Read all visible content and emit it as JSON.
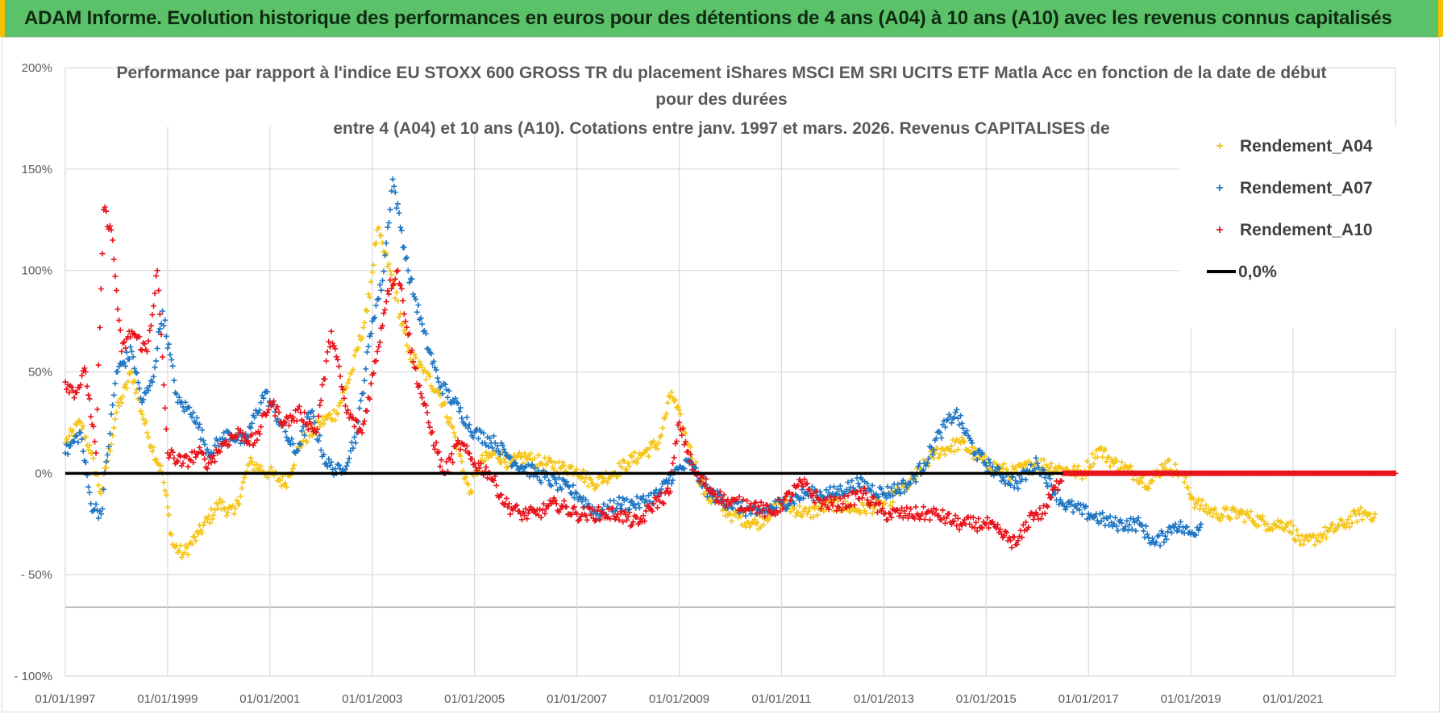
{
  "banner": {
    "text": "ADAM Informe. Evolution historique des performances en euros pour des détentions de 4 ans (A04) à 10 ans (A10) avec les revenus connus capitalisés"
  },
  "colors": {
    "banner_bg": "#5cc26a",
    "banner_border": "#f2c200",
    "A04": "#f5c518",
    "A07": "#1f77c4",
    "A10": "#e8141c",
    "zero_line": "#000000",
    "grid": "#d9d9d9"
  },
  "chart_data": {
    "type": "scatter",
    "title_lines": [
      "Performance par rapport à l'indice EU STOXX 600 GROSS TR  du placement iShares MSCI EM SRI UCITS ETF Matla Acc en fonction de la date de début",
      "pour des durées",
      "entre 4 (A04) et 10 ans (A10). Cotations entre janv. 1997 et mars. 2026. Revenus CAPITALISES de"
    ],
    "y_ticks": [
      "200%",
      "150%",
      "100%",
      "50%",
      "0%",
      "- 50%",
      "- 100%"
    ],
    "y_tick_values": [
      200,
      150,
      100,
      50,
      0,
      -50,
      -100
    ],
    "ylim": [
      -100,
      200
    ],
    "x_ticks": [
      "01/01/1997",
      "01/01/1999",
      "01/01/2001",
      "01/01/2003",
      "01/01/2005",
      "01/01/2007",
      "01/01/2009",
      "01/01/2011",
      "01/01/2013",
      "01/01/2015",
      "01/01/2017",
      "01/01/2019",
      "01/01/2021"
    ],
    "x_tick_years": [
      1997,
      1999,
      2001,
      2003,
      2005,
      2007,
      2009,
      2011,
      2013,
      2015,
      2017,
      2019,
      2021
    ],
    "xlim": [
      1997.0,
      2023.0
    ],
    "legend_position": "top-right",
    "grid": true,
    "series": [
      {
        "name": "Rendement_A04",
        "x": [
          1997.0,
          1997.3,
          1997.5,
          1997.7,
          1998.0,
          1998.3,
          1998.6,
          1998.9,
          1999.1,
          1999.3,
          1999.6,
          2000.0,
          2000.3,
          2000.6,
          2001.0,
          2001.3,
          2001.6,
          2002.0,
          2002.3,
          2002.6,
          2002.9,
          2003.1,
          2003.4,
          2003.7,
          2004.0,
          2004.3,
          2004.6,
          2004.9,
          2005.1,
          2005.4,
          2005.7,
          2006.0,
          2006.3,
          2006.7,
          2007.0,
          2007.3,
          2007.7,
          2008.0,
          2008.3,
          2008.6,
          2008.85,
          2009.1,
          2009.5,
          2010.0,
          2010.5,
          2011.0,
          2011.5,
          2012.0,
          2012.5,
          2013.0,
          2013.5,
          2014.0,
          2014.5,
          2015.0,
          2015.5,
          2016.0,
          2016.5,
          2016.9,
          2017.2,
          2017.5,
          2017.9,
          2018.2,
          2018.5,
          2018.8,
          2019.1,
          2019.5,
          2020.0,
          2020.5,
          2020.9,
          2021.2,
          2021.6,
          2022.0,
          2022.3,
          2022.6
        ],
        "y": [
          15,
          25,
          10,
          -10,
          30,
          50,
          20,
          0,
          -35,
          -40,
          -30,
          -15,
          -20,
          5,
          0,
          -5,
          15,
          25,
          30,
          50,
          80,
          120,
          95,
          60,
          50,
          40,
          20,
          -10,
          5,
          10,
          5,
          8,
          5,
          3,
          2,
          -5,
          0,
          5,
          10,
          15,
          40,
          20,
          -10,
          -20,
          -25,
          -15,
          -20,
          -15,
          -18,
          -15,
          -5,
          10,
          15,
          5,
          0,
          5,
          2,
          0,
          12,
          5,
          0,
          -5,
          5,
          0,
          -15,
          -20,
          -20,
          -25,
          -25,
          -35,
          -30,
          -25,
          -20,
          -20
        ]
      },
      {
        "name": "Rendement_A07",
        "x": [
          1997.0,
          1997.3,
          1997.5,
          1997.7,
          1998.0,
          1998.3,
          1998.5,
          1998.7,
          1998.9,
          1999.2,
          1999.5,
          1999.8,
          2000.2,
          2000.5,
          2000.9,
          2001.2,
          2001.5,
          2001.8,
          2002.1,
          2002.4,
          2002.7,
          2003.0,
          2003.2,
          2003.4,
          2003.7,
          2004.0,
          2004.3,
          2004.6,
          2005.0,
          2005.4,
          2005.8,
          2006.2,
          2006.6,
          2007.0,
          2007.4,
          2007.8,
          2008.2,
          2008.6,
          2008.9,
          2009.2,
          2009.6,
          2010.0,
          2010.5,
          2011.0,
          2011.5,
          2012.0,
          2012.5,
          2013.0,
          2013.5,
          2013.8,
          2014.1,
          2014.4,
          2014.8,
          2015.2,
          2015.6,
          2016.0,
          2016.5,
          2017.0,
          2017.5,
          2018.0,
          2018.3,
          2018.7,
          2019.0,
          2019.2
        ],
        "y": [
          10,
          20,
          -15,
          -20,
          50,
          60,
          35,
          45,
          80,
          35,
          30,
          10,
          20,
          15,
          40,
          25,
          10,
          30,
          5,
          0,
          20,
          75,
          95,
          145,
          100,
          70,
          45,
          35,
          20,
          15,
          5,
          0,
          -5,
          -10,
          -20,
          -15,
          -15,
          -10,
          0,
          5,
          -10,
          -15,
          -20,
          -15,
          -10,
          -10,
          -5,
          -10,
          -5,
          5,
          20,
          30,
          10,
          0,
          -5,
          5,
          -15,
          -20,
          -25,
          -25,
          -35,
          -25,
          -30,
          -25
        ]
      },
      {
        "name": "Rendement_A10",
        "x": [
          1997.0,
          1997.2,
          1997.4,
          1997.6,
          1997.75,
          1997.9,
          1998.1,
          1998.3,
          1998.6,
          1998.8,
          1999.0,
          1999.3,
          1999.6,
          1999.8,
          2000.1,
          2000.4,
          2000.7,
          2001.0,
          2001.3,
          2001.6,
          2001.9,
          2002.2,
          2002.5,
          2002.8,
          2003.1,
          2003.3,
          2003.5,
          2003.8,
          2004.1,
          2004.4,
          2004.7,
          2005.0,
          2005.3,
          2005.6,
          2005.9,
          2006.2,
          2006.6,
          2007.0,
          2007.5,
          2007.8,
          2008.2,
          2008.5,
          2008.8,
          2009.0,
          2009.3,
          2009.7,
          2010.0,
          2010.4,
          2010.8,
          2011.0,
          2011.4,
          2011.8,
          2012.2,
          2012.6,
          2013.0,
          2013.5,
          2014.0,
          2014.5,
          2015.0,
          2015.3,
          2015.6,
          2015.9,
          2016.1,
          2016.5,
          2017.0,
          2017.5,
          2018.0,
          2018.5,
          2019.0,
          2019.5,
          2020.0,
          2020.5,
          2021.0,
          2021.5,
          2022.0,
          2022.5,
          2023.0
        ],
        "y": [
          45,
          40,
          50,
          10,
          130,
          120,
          60,
          70,
          60,
          100,
          10,
          5,
          10,
          5,
          15,
          20,
          15,
          35,
          25,
          30,
          20,
          70,
          30,
          20,
          60,
          90,
          100,
          55,
          25,
          0,
          15,
          5,
          0,
          -15,
          -20,
          -20,
          -15,
          -20,
          -20,
          -20,
          -25,
          -15,
          -10,
          25,
          0,
          -10,
          -15,
          -15,
          -20,
          -15,
          -5,
          -15,
          -15,
          -10,
          -20,
          -20,
          -20,
          -25,
          -25,
          -30,
          -35,
          -20,
          -20,
          0,
          0,
          0,
          0,
          0,
          0,
          0,
          0,
          0,
          0,
          0,
          0,
          0,
          0
        ]
      }
    ],
    "zero_line_label": "0,0%"
  }
}
